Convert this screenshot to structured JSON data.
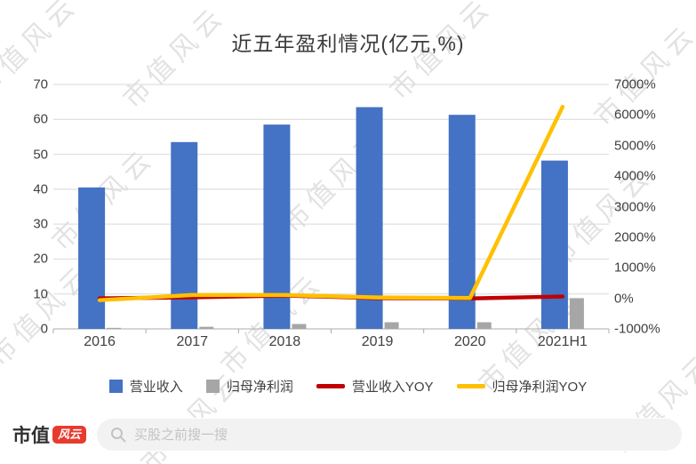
{
  "watermark": {
    "text": "市值风云"
  },
  "chart_data": {
    "type": "bar",
    "subtype": "bar-line-combo",
    "title": "近五年盈利情况(亿元,%)",
    "categories": [
      "2016",
      "2017",
      "2018",
      "2019",
      "2020",
      "2021H1"
    ],
    "series": [
      {
        "name": "营业收入",
        "type": "bar",
        "axis": "left",
        "color": "#4472C4",
        "values": [
          40.5,
          53.5,
          58.5,
          63.5,
          61.3,
          48.2
        ]
      },
      {
        "name": "归母净利润",
        "type": "bar",
        "axis": "left",
        "color": "#A6A6A6",
        "values": [
          0.3,
          0.6,
          1.4,
          1.9,
          1.9,
          8.8
        ]
      },
      {
        "name": "营业收入YOY",
        "type": "line",
        "axis": "right",
        "color": "#C00000",
        "values": [
          0,
          32,
          90,
          9,
          -4,
          60
        ]
      },
      {
        "name": "归母净利润YOY",
        "type": "line",
        "axis": "right",
        "color": "#FFC000",
        "values": [
          -60,
          110,
          110,
          30,
          10,
          6270
        ]
      }
    ],
    "left_axis": {
      "min": 0,
      "max": 70,
      "ticks": [
        0,
        10,
        20,
        30,
        40,
        50,
        60,
        70
      ]
    },
    "right_axis": {
      "min": -1000,
      "max": 7000,
      "ticks": [
        -1000,
        0,
        1000,
        2000,
        3000,
        4000,
        5000,
        6000,
        7000
      ],
      "suffix": "%"
    },
    "grid": true,
    "grid_color": "#d9d9d9",
    "legend_position": "bottom"
  },
  "footer": {
    "logo_part1": "市值",
    "logo_part2": "风云",
    "brand_color": "#e73b2f",
    "search_placeholder": "买股之前搜一搜"
  }
}
